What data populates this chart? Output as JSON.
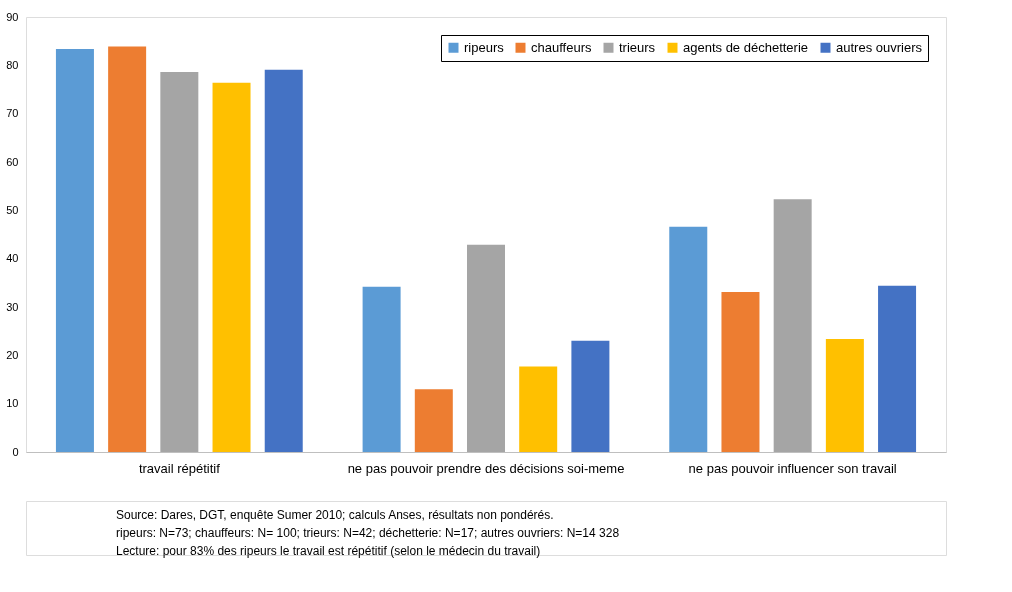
{
  "chart_data": {
    "type": "bar",
    "categories": [
      "travail répétitif",
      "ne pas pouvoir prendre des décisions soi-meme",
      "ne pas pouvoir influencer son travail"
    ],
    "series": [
      {
        "name": "ripeurs",
        "color": "#5b9bd5",
        "values": [
          83.4,
          34.2,
          46.6
        ]
      },
      {
        "name": "chauffeurs",
        "color": "#ed7d31",
        "values": [
          83.9,
          13.0,
          33.1
        ]
      },
      {
        "name": "trieurs",
        "color": "#a5a5a5",
        "values": [
          78.6,
          42.9,
          52.3
        ]
      },
      {
        "name": "agents de déchetterie",
        "color": "#ffc000",
        "values": [
          76.4,
          17.7,
          23.4
        ]
      },
      {
        "name": "autres ouvriers",
        "color": "#4472c4",
        "values": [
          79.1,
          23.0,
          34.4
        ]
      }
    ],
    "ylim": [
      0,
      90
    ],
    "yticks": [
      0,
      10,
      20,
      30,
      40,
      50,
      60,
      70,
      80,
      90
    ],
    "grid": false,
    "legend": "top right",
    "annotations": [
      "Source: Dares, DGT, enquête Sumer 2010; calculs Anses, résultats non pondérés.",
      "ripeurs: N=73; chauffeurs: N= 100; trieurs: N=42; déchetterie: N=17; autres ouvriers: N=14 328",
      "Lecture: pour 83% des ripeurs le travail est répétitif (selon le médecin du travail)"
    ]
  }
}
